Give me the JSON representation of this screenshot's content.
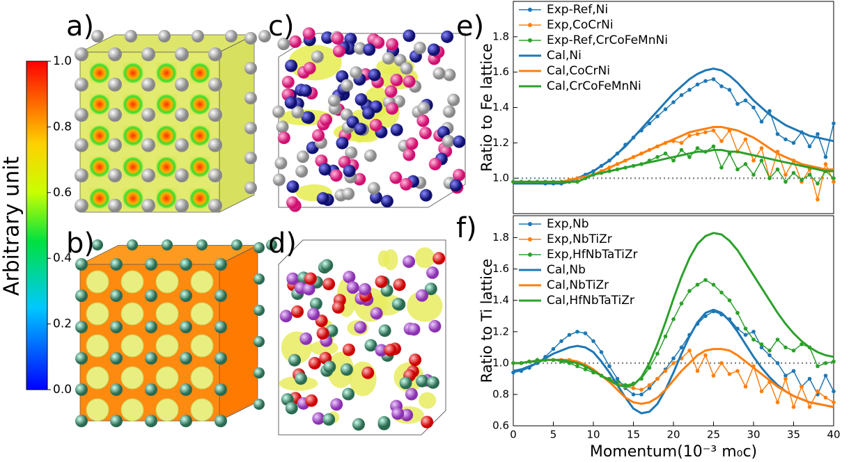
{
  "panels": {
    "a": "a)",
    "b": "b)",
    "c": "c)",
    "d": "d)",
    "e": "e)",
    "f": "f)"
  },
  "colorbar": {
    "label": "Arbitrary unit",
    "lim": [
      0,
      1
    ],
    "ticks": [
      {
        "value": 0,
        "label": "0.0"
      },
      0.2,
      0.4,
      0.6,
      0.8,
      {
        "value": 1,
        "label": "1.0"
      }
    ]
  },
  "chart_data": [
    {
      "type": "line",
      "ylabel": "Ratio to Fe lattice",
      "xlim": [
        0,
        40
      ],
      "ylim": [
        0.8,
        2.0
      ],
      "yticks": [
        {
          "value": 1,
          "label": "1.0"
        },
        1.2,
        1.4,
        1.6,
        1.8
      ],
      "reference_line": 1,
      "legend": "upper left",
      "x": [
        0,
        1,
        2,
        3,
        4,
        5,
        6,
        7,
        8,
        9,
        10,
        11,
        12,
        13,
        14,
        15,
        16,
        17,
        18,
        19,
        20,
        21,
        22,
        23,
        24,
        25,
        26,
        27,
        28,
        29,
        30,
        31,
        32,
        33,
        34,
        35,
        36,
        37,
        38,
        39,
        40
      ],
      "series": [
        {
          "name": "Exp-Ref,Ni",
          "color": "#1f77b4",
          "marker": true,
          "values": [
            0.98,
            0.98,
            0.98,
            0.98,
            0.97,
            0.97,
            0.97,
            0.98,
            1.0,
            1.02,
            1.04,
            1.07,
            1.1,
            1.14,
            1.19,
            1.23,
            1.27,
            1.31,
            1.35,
            1.39,
            1.43,
            1.47,
            1.5,
            1.53,
            1.55,
            1.56,
            1.52,
            1.5,
            1.42,
            1.44,
            1.4,
            1.32,
            1.38,
            1.25,
            1.22,
            1.2,
            1.26,
            1.18,
            1.25,
            1.12,
            1.31
          ]
        },
        {
          "name": "Exp,CoCrNi",
          "color": "#ff7f0e",
          "marker": true,
          "values": [
            0.98,
            0.98,
            0.98,
            0.98,
            0.98,
            0.98,
            0.98,
            0.99,
            1.0,
            1.01,
            1.02,
            1.04,
            1.06,
            1.08,
            1.1,
            1.12,
            1.14,
            1.16,
            1.18,
            1.2,
            1.21,
            1.2,
            1.24,
            1.25,
            1.26,
            1.27,
            1.21,
            1.27,
            1.15,
            1.22,
            1.1,
            1.17,
            1.0,
            1.15,
            1.02,
            1.1,
            0.98,
            1.05,
            0.88,
            1.08,
            0.98
          ]
        },
        {
          "name": "Exp-Ref,CrCoFeMnNi",
          "color": "#2ca02c",
          "marker": true,
          "values": [
            0.98,
            0.98,
            0.98,
            0.98,
            0.98,
            0.98,
            0.98,
            0.98,
            0.98,
            1.0,
            1.02,
            1.03,
            1.04,
            1.05,
            1.06,
            1.07,
            1.08,
            1.1,
            1.12,
            1.14,
            1.1,
            1.16,
            1.12,
            1.17,
            1.15,
            1.18,
            1.06,
            1.14,
            1.05,
            1.08,
            1.02,
            1.1,
            1.0,
            1.05,
            0.98,
            1.03,
            0.99,
            1.02,
            0.97,
            1.04,
            1.0
          ]
        },
        {
          "name": "Cal,Ni",
          "color": "#1f77b4",
          "marker": false,
          "values": [
            0.97,
            0.97,
            0.97,
            0.97,
            0.97,
            0.97,
            0.97,
            0.98,
            1.0,
            1.02,
            1.04,
            1.07,
            1.1,
            1.14,
            1.18,
            1.23,
            1.28,
            1.33,
            1.38,
            1.43,
            1.48,
            1.52,
            1.56,
            1.59,
            1.61,
            1.62,
            1.61,
            1.58,
            1.54,
            1.49,
            1.44,
            1.4,
            1.36,
            1.33,
            1.3,
            1.28,
            1.26,
            1.24,
            1.23,
            1.22,
            1.21
          ]
        },
        {
          "name": "Cal,CoCrNi",
          "color": "#ff7f0e",
          "marker": false,
          "values": [
            0.98,
            0.98,
            0.98,
            0.98,
            0.98,
            0.98,
            0.98,
            0.99,
            1.0,
            1.01,
            1.02,
            1.04,
            1.06,
            1.08,
            1.1,
            1.12,
            1.14,
            1.16,
            1.18,
            1.2,
            1.22,
            1.24,
            1.26,
            1.27,
            1.28,
            1.29,
            1.29,
            1.28,
            1.27,
            1.25,
            1.23,
            1.2,
            1.17,
            1.14,
            1.12,
            1.1,
            1.08,
            1.07,
            1.06,
            1.05,
            1.05
          ]
        },
        {
          "name": "Cal,CrCoFeMnNi",
          "color": "#2ca02c",
          "marker": false,
          "values": [
            0.98,
            0.98,
            0.98,
            0.98,
            0.98,
            0.98,
            0.98,
            0.98,
            0.98,
            1.0,
            1.02,
            1.03,
            1.04,
            1.05,
            1.06,
            1.07,
            1.08,
            1.09,
            1.1,
            1.11,
            1.12,
            1.13,
            1.14,
            1.15,
            1.15,
            1.16,
            1.16,
            1.15,
            1.15,
            1.14,
            1.13,
            1.12,
            1.11,
            1.1,
            1.09,
            1.08,
            1.07,
            1.06,
            1.05,
            1.04,
            1.04
          ]
        }
      ]
    },
    {
      "type": "line",
      "ylabel": "Ratio to Ti lattice",
      "xlabel": "Momentum(10⁻³ m₀c)",
      "xlim": [
        0,
        40
      ],
      "ylim": [
        0.6,
        1.94
      ],
      "xticks": [
        0,
        5,
        10,
        15,
        20,
        25,
        30,
        35,
        40
      ],
      "yticks": [
        0.6,
        0.8,
        {
          "value": 1,
          "label": "1.0"
        },
        1.2,
        1.4,
        1.6,
        1.8
      ],
      "reference_line": 1,
      "legend": "upper left",
      "x": [
        0,
        1,
        2,
        3,
        4,
        5,
        6,
        7,
        8,
        9,
        10,
        11,
        12,
        13,
        14,
        15,
        16,
        17,
        18,
        19,
        20,
        21,
        22,
        23,
        24,
        25,
        26,
        27,
        28,
        29,
        30,
        31,
        32,
        33,
        34,
        35,
        36,
        37,
        38,
        39,
        40
      ],
      "series": [
        {
          "name": "Exp,Nb",
          "color": "#1f77b4",
          "marker": true,
          "values": [
            0.94,
            0.95,
            0.97,
            1.0,
            1.04,
            1.09,
            1.14,
            1.18,
            1.2,
            1.19,
            1.14,
            1.07,
            0.98,
            0.9,
            0.84,
            0.8,
            0.8,
            0.84,
            0.9,
            0.96,
            1.03,
            1.1,
            1.18,
            1.25,
            1.3,
            1.33,
            1.31,
            1.28,
            1.22,
            1.18,
            1.2,
            1.1,
            1.05,
            1.0,
            0.92,
            0.95,
            0.85,
            0.9,
            0.8,
            0.92,
            0.82
          ]
        },
        {
          "name": "Exp,NbTiZr",
          "color": "#ff7f0e",
          "marker": true,
          "values": [
            1.0,
            1.0,
            1.01,
            1.02,
            1.02,
            1.02,
            1.02,
            1.02,
            1.0,
            0.98,
            0.95,
            0.92,
            0.9,
            0.87,
            0.85,
            0.84,
            0.83,
            0.86,
            0.9,
            0.95,
            1.0,
            1.03,
            1.08,
            0.95,
            1.05,
            0.92,
            1.0,
            0.93,
            0.95,
            0.85,
            0.98,
            0.82,
            0.88,
            0.75,
            0.9,
            0.72,
            0.85,
            0.72,
            0.82,
            0.78,
            0.75
          ]
        },
        {
          "name": "Exp,HfNbTaTiZr",
          "color": "#2ca02c",
          "marker": true,
          "values": [
            1.0,
            1.0,
            1.01,
            1.02,
            1.02,
            1.02,
            1.01,
            1.0,
            0.98,
            0.96,
            0.94,
            0.92,
            0.9,
            0.88,
            0.86,
            0.87,
            0.9,
            0.97,
            1.06,
            1.17,
            1.28,
            1.38,
            1.46,
            1.5,
            1.53,
            1.5,
            1.45,
            1.4,
            1.32,
            1.22,
            1.15,
            1.12,
            1.08,
            1.15,
            1.1,
            1.08,
            1.12,
            1.1,
            0.98,
            1.0,
            1.01
          ]
        },
        {
          "name": "Cal,Nb",
          "color": "#1f77b4",
          "marker": false,
          "values": [
            0.95,
            0.96,
            0.98,
            1.0,
            1.03,
            1.06,
            1.08,
            1.1,
            1.11,
            1.1,
            1.07,
            1.01,
            0.94,
            0.86,
            0.78,
            0.71,
            0.68,
            0.69,
            0.74,
            0.83,
            0.94,
            1.06,
            1.17,
            1.26,
            1.32,
            1.34,
            1.32,
            1.27,
            1.2,
            1.12,
            1.04,
            0.97,
            0.91,
            0.86,
            0.82,
            0.79,
            0.77,
            0.75,
            0.74,
            0.73,
            0.72
          ]
        },
        {
          "name": "Cal,NbTiZr",
          "color": "#ff7f0e",
          "marker": false,
          "values": [
            1.0,
            1.0,
            1.01,
            1.01,
            1.02,
            1.02,
            1.02,
            1.02,
            1.01,
            0.99,
            0.96,
            0.92,
            0.88,
            0.83,
            0.78,
            0.75,
            0.74,
            0.75,
            0.78,
            0.83,
            0.89,
            0.95,
            1.0,
            1.05,
            1.08,
            1.09,
            1.09,
            1.08,
            1.05,
            1.01,
            0.97,
            0.93,
            0.89,
            0.85,
            0.82,
            0.79,
            0.77,
            0.75,
            0.74,
            0.73,
            0.72
          ]
        },
        {
          "name": "Cal,HfNbTaTiZr",
          "color": "#2ca02c",
          "marker": false,
          "values": [
            1.0,
            1.0,
            1.01,
            1.01,
            1.02,
            1.02,
            1.02,
            1.01,
            1.0,
            0.98,
            0.95,
            0.92,
            0.89,
            0.86,
            0.85,
            0.86,
            0.91,
            1.0,
            1.12,
            1.26,
            1.41,
            1.55,
            1.67,
            1.76,
            1.81,
            1.83,
            1.82,
            1.78,
            1.72,
            1.64,
            1.56,
            1.48,
            1.4,
            1.32,
            1.25,
            1.19,
            1.14,
            1.1,
            1.07,
            1.05,
            1.04
          ]
        }
      ]
    }
  ]
}
